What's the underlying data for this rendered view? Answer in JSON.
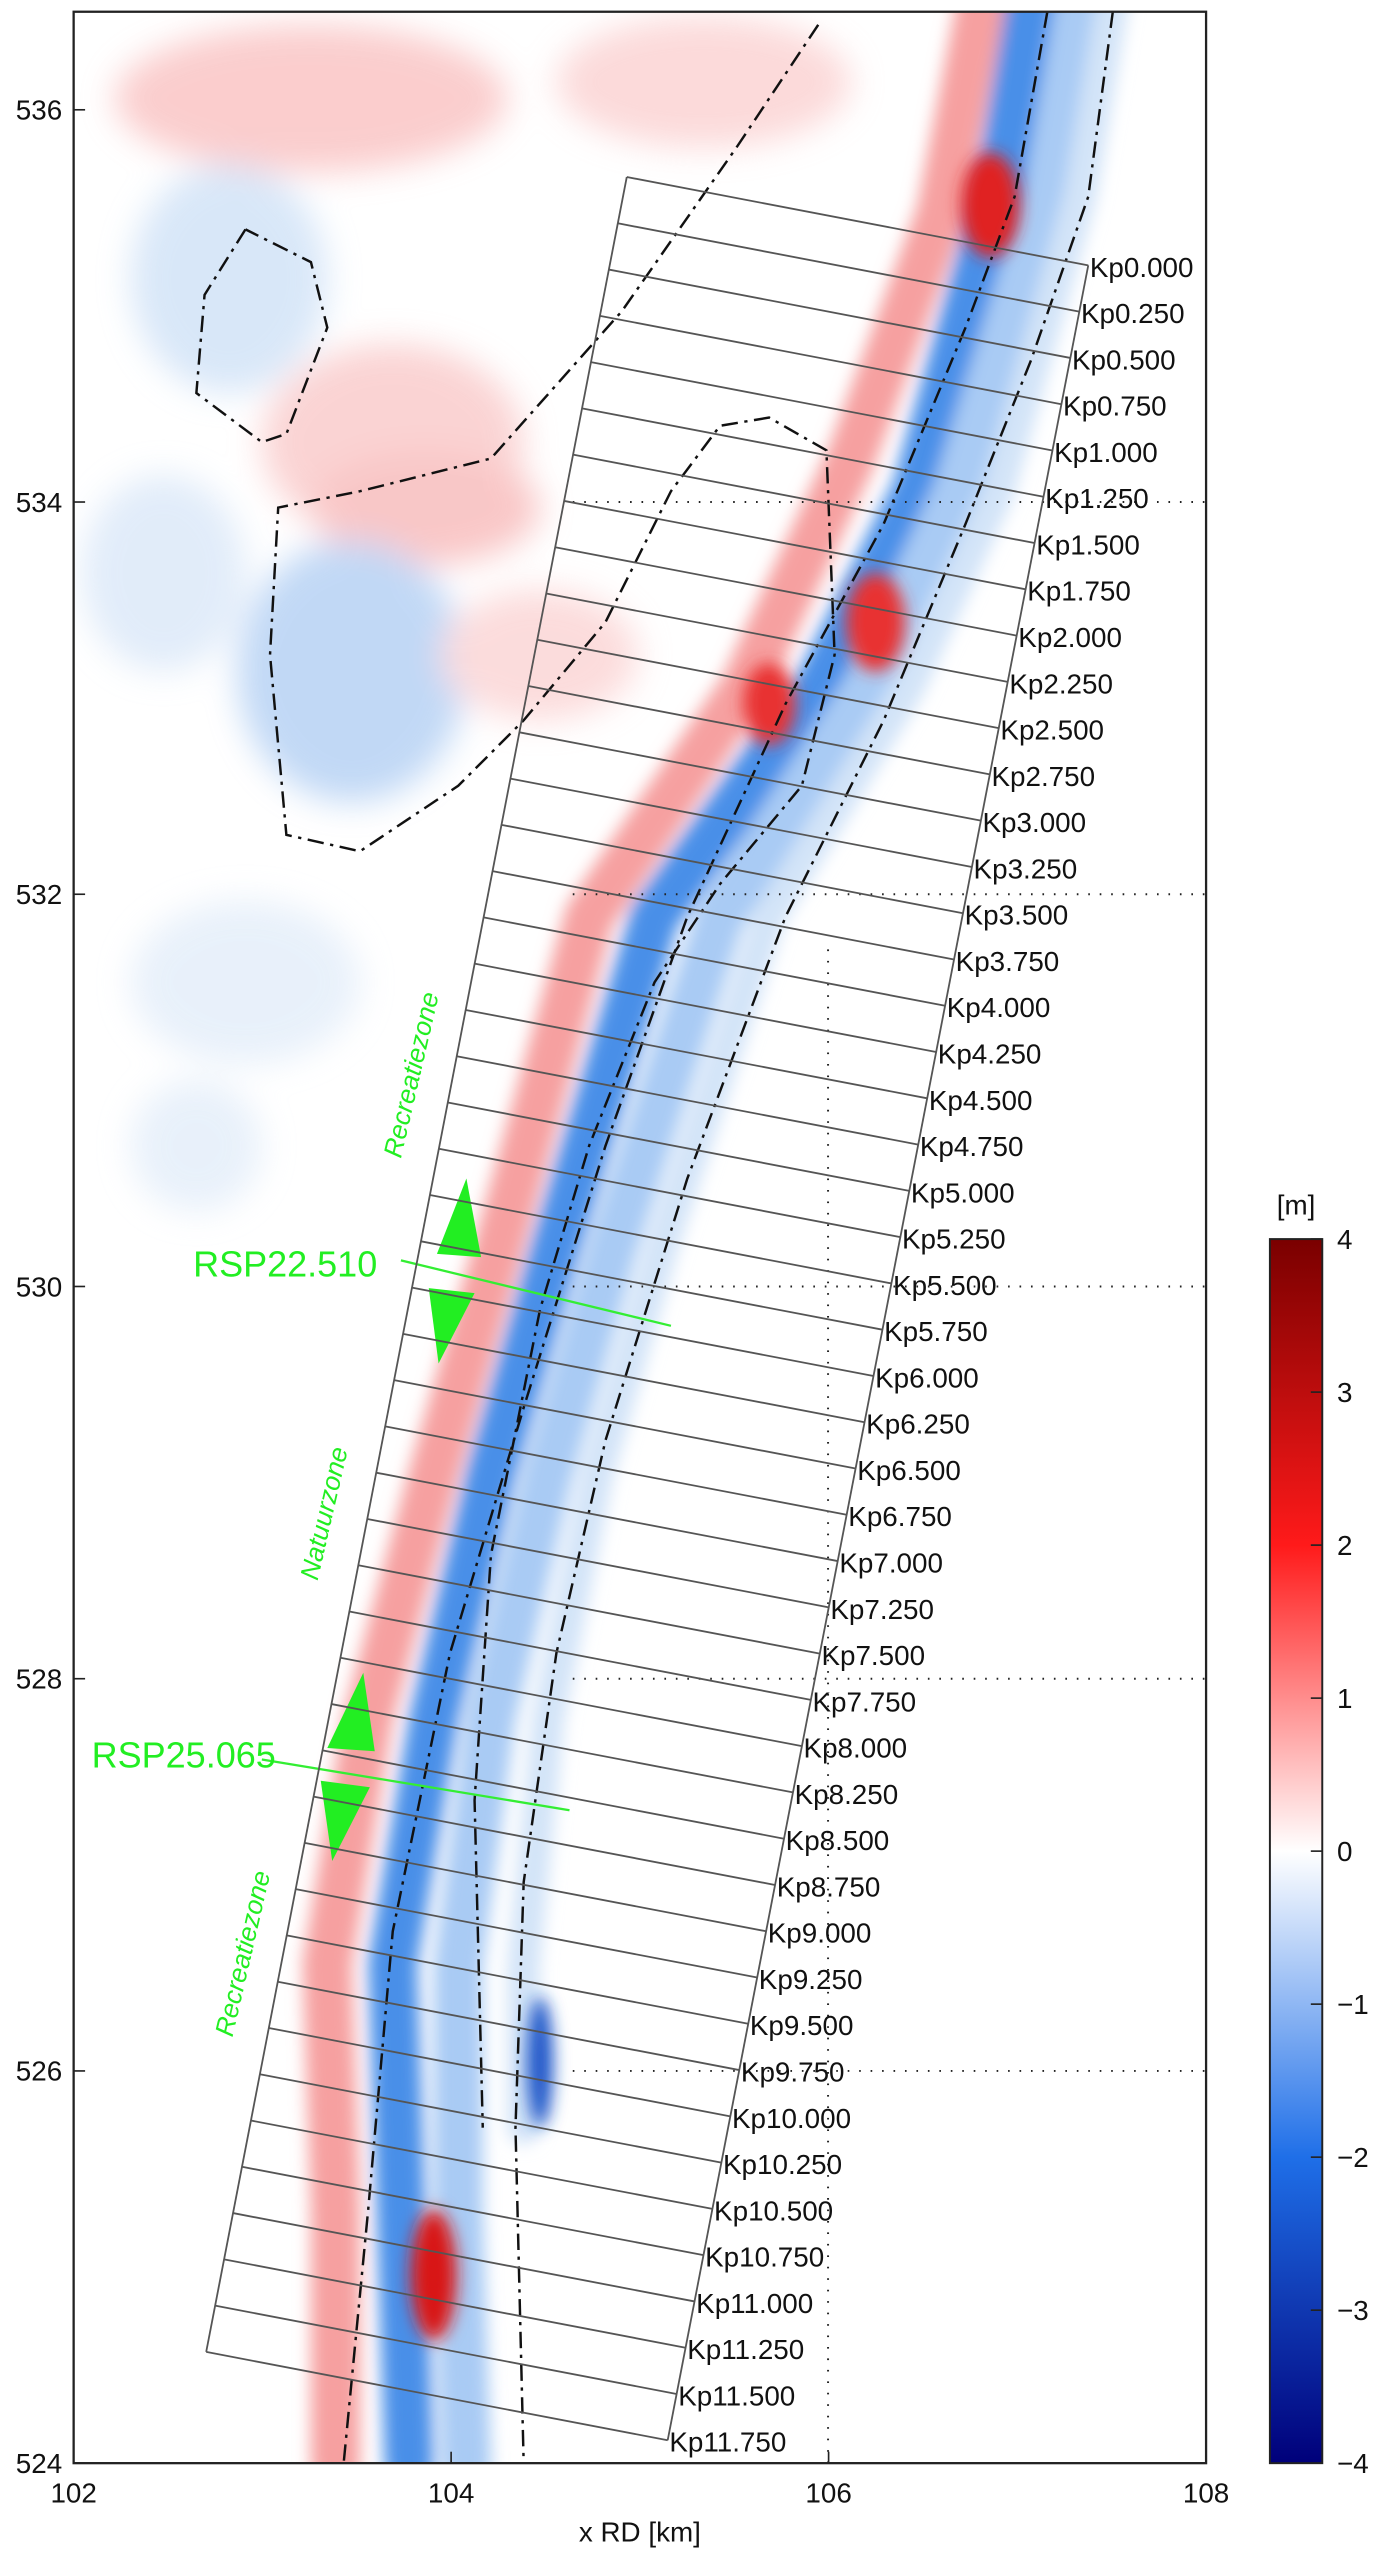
{
  "chart_data": {
    "type": "heatmap",
    "x_label": "x RD [km]",
    "xlim": [
      102,
      108
    ],
    "xticks": [
      102,
      104,
      106,
      108
    ],
    "ylim": [
      524,
      536.5
    ],
    "yticks": [
      524,
      526,
      528,
      530,
      532,
      534,
      536
    ],
    "colorbar": {
      "label": "[m]",
      "lim": [
        -4,
        4
      ],
      "colormap": [
        "#00007a",
        "#1f6fe8",
        "#ffffff",
        "#ff1a1a",
        "#7a0000"
      ],
      "ticks": [
        {
          "value": -4,
          "label": "−4"
        },
        {
          "value": -3,
          "label": "−3"
        },
        {
          "value": -2,
          "label": "−2"
        },
        {
          "value": -1,
          "label": "−1"
        },
        0,
        1,
        2,
        3,
        4
      ]
    },
    "transects": [
      "Kp0.000",
      "Kp0.250",
      "Kp0.500",
      "Kp0.750",
      "Kp1.000",
      "Kp1.250",
      "Kp1.500",
      "Kp1.750",
      "Kp2.000",
      "Kp2.250",
      "Kp2.500",
      "Kp2.750",
      "Kp3.000",
      "Kp3.250",
      "Kp3.500",
      "Kp3.750",
      "Kp4.000",
      "Kp4.250",
      "Kp4.500",
      "Kp4.750",
      "Kp5.000",
      "Kp5.250",
      "Kp5.500",
      "Kp5.750",
      "Kp6.000",
      "Kp6.250",
      "Kp6.500",
      "Kp6.750",
      "Kp7.000",
      "Kp7.250",
      "Kp7.500",
      "Kp7.750",
      "Kp8.000",
      "Kp8.250",
      "Kp8.500",
      "Kp8.750",
      "Kp9.000",
      "Kp9.250",
      "Kp9.500",
      "Kp9.750",
      "Kp10.000",
      "Kp10.250",
      "Kp10.500",
      "Kp10.750",
      "Kp11.000",
      "Kp11.250",
      "Kp11.500",
      "Kp11.750"
    ],
    "profiles": [
      "RSP22.510",
      "RSP25.065"
    ],
    "zones": [
      "Recreatiezone",
      "Natuurzone",
      "Recreatiezone"
    ]
  }
}
